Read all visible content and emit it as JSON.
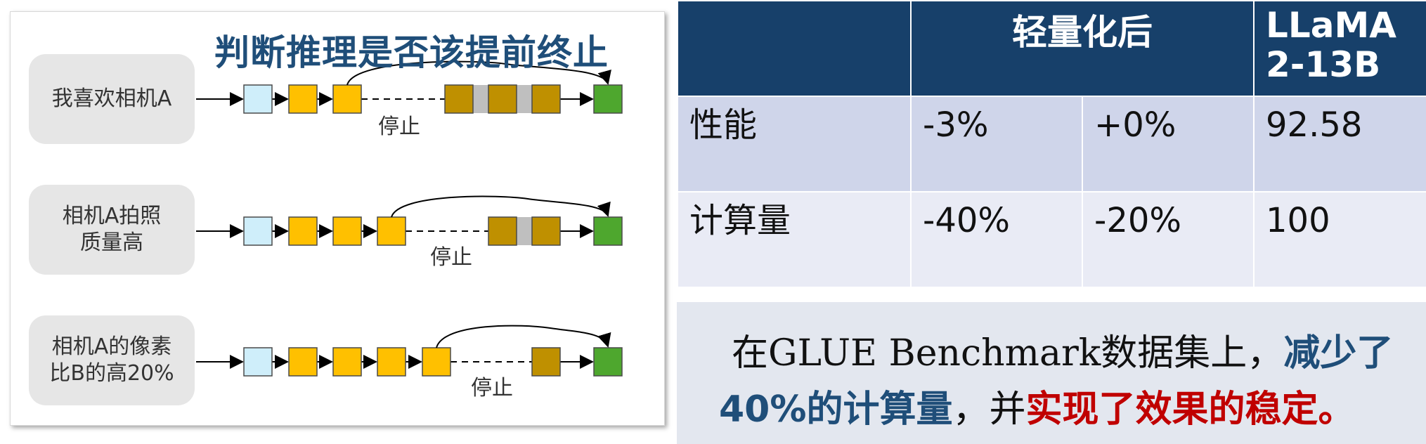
{
  "diagram": {
    "title": "判断推理是否该提前终止",
    "rows": [
      {
        "sentence": "我喜欢相机A",
        "stop_label": "停止"
      },
      {
        "sentence": "相机A拍照质量高",
        "stop_label": "停止"
      },
      {
        "sentence": "相机A的像素比B的高20%",
        "stop_label": "停止"
      }
    ],
    "colors": {
      "input_token": "#cfeefa",
      "active_token": "#ffc000",
      "skipped_token": "#bf9000",
      "skipped_gap": "#bfbfbf",
      "output_token": "#4ea72e"
    }
  },
  "table": {
    "header_group": "轻量化后",
    "header_model": "LLaMA2-13B",
    "rows": [
      {
        "metric": "性能",
        "v1": "-3%",
        "v2": "+0%",
        "base": "92.58"
      },
      {
        "metric": "计算量",
        "v1": "-40%",
        "v2": "-20%",
        "base": "100"
      }
    ]
  },
  "summary": {
    "part1": "在GLUE Benchmark数据集上，",
    "part2": "减少了",
    "part3": "40%的计算量",
    "part4": "，并",
    "part5": "实现了效果的稳定。"
  }
}
